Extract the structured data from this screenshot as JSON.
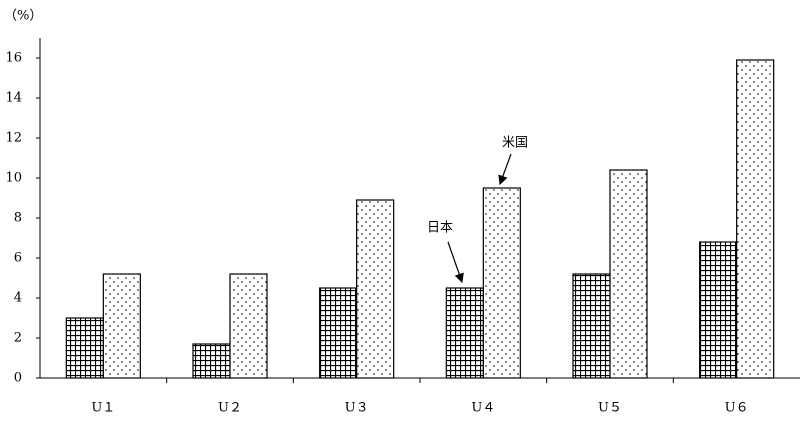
{
  "chart_data": {
    "type": "bar",
    "y_label": "（%）",
    "categories": [
      "U１",
      "U２",
      "U３",
      "U４",
      "U５",
      "U６"
    ],
    "series": [
      {
        "name": "日本",
        "color": "#000000",
        "pattern": "grid",
        "values": [
          3.0,
          1.7,
          4.5,
          4.5,
          5.2,
          6.8
        ]
      },
      {
        "name": "米国",
        "color": "#000000",
        "pattern": "dots",
        "values": [
          5.2,
          5.2,
          8.9,
          9.5,
          10.4,
          15.9
        ]
      }
    ],
    "ylim": [
      0,
      16
    ],
    "yticks": [
      0,
      2,
      4,
      6,
      8,
      10,
      12,
      14,
      16
    ]
  }
}
